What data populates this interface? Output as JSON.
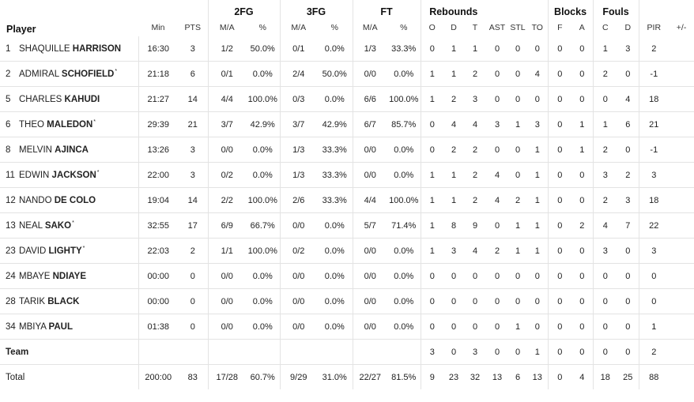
{
  "headers": {
    "player": "Player",
    "groups": {
      "fg2": "2FG",
      "fg3": "3FG",
      "ft": "FT",
      "rebounds": "Rebounds",
      "blocks": "Blocks",
      "fouls": "Fouls"
    },
    "cols": {
      "min": "Min",
      "pts": "PTS",
      "fg2_ma": "M/A",
      "fg2_pct": "%",
      "fg3_ma": "M/A",
      "fg3_pct": "%",
      "ft_ma": "M/A",
      "ft_pct": "%",
      "o": "O",
      "d": "D",
      "t": "T",
      "ast": "AST",
      "stl": "STL",
      "to": "TO",
      "blk_f": "F",
      "blk_a": "A",
      "foul_c": "C",
      "foul_d": "D",
      "pir": "PIR",
      "pm": "+/-"
    }
  },
  "players": [
    {
      "num": "1",
      "first": "SHAQUILLE",
      "last": "HARRISON",
      "starter": "",
      "min": "16:30",
      "pts": "3",
      "fg2_ma": "1/2",
      "fg2_pct": "50.0%",
      "fg3_ma": "0/1",
      "fg3_pct": "0.0%",
      "ft_ma": "1/3",
      "ft_pct": "33.3%",
      "o": "0",
      "d": "1",
      "t": "1",
      "ast": "0",
      "stl": "0",
      "to": "0",
      "blk_f": "0",
      "blk_a": "0",
      "foul_c": "1",
      "foul_d": "3",
      "pir": "2",
      "pm": ""
    },
    {
      "num": "2",
      "first": "ADMIRAL",
      "last": "SCHOFIELD",
      "starter": "*",
      "min": "21:18",
      "pts": "6",
      "fg2_ma": "0/1",
      "fg2_pct": "0.0%",
      "fg3_ma": "2/4",
      "fg3_pct": "50.0%",
      "ft_ma": "0/0",
      "ft_pct": "0.0%",
      "o": "1",
      "d": "1",
      "t": "2",
      "ast": "0",
      "stl": "0",
      "to": "4",
      "blk_f": "0",
      "blk_a": "0",
      "foul_c": "2",
      "foul_d": "0",
      "pir": "-1",
      "pm": ""
    },
    {
      "num": "5",
      "first": "CHARLES",
      "last": "KAHUDI",
      "starter": "",
      "min": "21:27",
      "pts": "14",
      "fg2_ma": "4/4",
      "fg2_pct": "100.0%",
      "fg3_ma": "0/3",
      "fg3_pct": "0.0%",
      "ft_ma": "6/6",
      "ft_pct": "100.0%",
      "o": "1",
      "d": "2",
      "t": "3",
      "ast": "0",
      "stl": "0",
      "to": "0",
      "blk_f": "0",
      "blk_a": "0",
      "foul_c": "0",
      "foul_d": "4",
      "pir": "18",
      "pm": ""
    },
    {
      "num": "6",
      "first": "THEO",
      "last": "MALEDON",
      "starter": "*",
      "min": "29:39",
      "pts": "21",
      "fg2_ma": "3/7",
      "fg2_pct": "42.9%",
      "fg3_ma": "3/7",
      "fg3_pct": "42.9%",
      "ft_ma": "6/7",
      "ft_pct": "85.7%",
      "o": "0",
      "d": "4",
      "t": "4",
      "ast": "3",
      "stl": "1",
      "to": "3",
      "blk_f": "0",
      "blk_a": "1",
      "foul_c": "1",
      "foul_d": "6",
      "pir": "21",
      "pm": ""
    },
    {
      "num": "8",
      "first": "MELVIN",
      "last": "AJINCA",
      "starter": "",
      "min": "13:26",
      "pts": "3",
      "fg2_ma": "0/0",
      "fg2_pct": "0.0%",
      "fg3_ma": "1/3",
      "fg3_pct": "33.3%",
      "ft_ma": "0/0",
      "ft_pct": "0.0%",
      "o": "0",
      "d": "2",
      "t": "2",
      "ast": "0",
      "stl": "0",
      "to": "1",
      "blk_f": "0",
      "blk_a": "1",
      "foul_c": "2",
      "foul_d": "0",
      "pir": "-1",
      "pm": ""
    },
    {
      "num": "11",
      "first": "EDWIN",
      "last": "JACKSON",
      "starter": "*",
      "min": "22:00",
      "pts": "3",
      "fg2_ma": "0/2",
      "fg2_pct": "0.0%",
      "fg3_ma": "1/3",
      "fg3_pct": "33.3%",
      "ft_ma": "0/0",
      "ft_pct": "0.0%",
      "o": "1",
      "d": "1",
      "t": "2",
      "ast": "4",
      "stl": "0",
      "to": "1",
      "blk_f": "0",
      "blk_a": "0",
      "foul_c": "3",
      "foul_d": "2",
      "pir": "3",
      "pm": ""
    },
    {
      "num": "12",
      "first": "NANDO",
      "last": "DE COLO",
      "starter": "",
      "min": "19:04",
      "pts": "14",
      "fg2_ma": "2/2",
      "fg2_pct": "100.0%",
      "fg3_ma": "2/6",
      "fg3_pct": "33.3%",
      "ft_ma": "4/4",
      "ft_pct": "100.0%",
      "o": "1",
      "d": "1",
      "t": "2",
      "ast": "4",
      "stl": "2",
      "to": "1",
      "blk_f": "0",
      "blk_a": "0",
      "foul_c": "2",
      "foul_d": "3",
      "pir": "18",
      "pm": ""
    },
    {
      "num": "13",
      "first": "NEAL",
      "last": "SAKO",
      "starter": "*",
      "min": "32:55",
      "pts": "17",
      "fg2_ma": "6/9",
      "fg2_pct": "66.7%",
      "fg3_ma": "0/0",
      "fg3_pct": "0.0%",
      "ft_ma": "5/7",
      "ft_pct": "71.4%",
      "o": "1",
      "d": "8",
      "t": "9",
      "ast": "0",
      "stl": "1",
      "to": "1",
      "blk_f": "0",
      "blk_a": "2",
      "foul_c": "4",
      "foul_d": "7",
      "pir": "22",
      "pm": ""
    },
    {
      "num": "23",
      "first": "DAVID",
      "last": "LIGHTY",
      "starter": "*",
      "min": "22:03",
      "pts": "2",
      "fg2_ma": "1/1",
      "fg2_pct": "100.0%",
      "fg3_ma": "0/2",
      "fg3_pct": "0.0%",
      "ft_ma": "0/0",
      "ft_pct": "0.0%",
      "o": "1",
      "d": "3",
      "t": "4",
      "ast": "2",
      "stl": "1",
      "to": "1",
      "blk_f": "0",
      "blk_a": "0",
      "foul_c": "3",
      "foul_d": "0",
      "pir": "3",
      "pm": ""
    },
    {
      "num": "24",
      "first": "MBAYE",
      "last": "NDIAYE",
      "starter": "",
      "min": "00:00",
      "pts": "0",
      "fg2_ma": "0/0",
      "fg2_pct": "0.0%",
      "fg3_ma": "0/0",
      "fg3_pct": "0.0%",
      "ft_ma": "0/0",
      "ft_pct": "0.0%",
      "o": "0",
      "d": "0",
      "t": "0",
      "ast": "0",
      "stl": "0",
      "to": "0",
      "blk_f": "0",
      "blk_a": "0",
      "foul_c": "0",
      "foul_d": "0",
      "pir": "0",
      "pm": ""
    },
    {
      "num": "28",
      "first": "TARIK",
      "last": "BLACK",
      "starter": "",
      "min": "00:00",
      "pts": "0",
      "fg2_ma": "0/0",
      "fg2_pct": "0.0%",
      "fg3_ma": "0/0",
      "fg3_pct": "0.0%",
      "ft_ma": "0/0",
      "ft_pct": "0.0%",
      "o": "0",
      "d": "0",
      "t": "0",
      "ast": "0",
      "stl": "0",
      "to": "0",
      "blk_f": "0",
      "blk_a": "0",
      "foul_c": "0",
      "foul_d": "0",
      "pir": "0",
      "pm": ""
    },
    {
      "num": "34",
      "first": "MBIYA",
      "last": "PAUL",
      "starter": "",
      "min": "01:38",
      "pts": "0",
      "fg2_ma": "0/0",
      "fg2_pct": "0.0%",
      "fg3_ma": "0/0",
      "fg3_pct": "0.0%",
      "ft_ma": "0/0",
      "ft_pct": "0.0%",
      "o": "0",
      "d": "0",
      "t": "0",
      "ast": "0",
      "stl": "1",
      "to": "0",
      "blk_f": "0",
      "blk_a": "0",
      "foul_c": "0",
      "foul_d": "0",
      "pir": "1",
      "pm": ""
    }
  ],
  "team": {
    "label": "Team",
    "min": "",
    "pts": "",
    "fg2_ma": "",
    "fg2_pct": "",
    "fg3_ma": "",
    "fg3_pct": "",
    "ft_ma": "",
    "ft_pct": "",
    "o": "3",
    "d": "0",
    "t": "3",
    "ast": "0",
    "stl": "0",
    "to": "1",
    "blk_f": "0",
    "blk_a": "0",
    "foul_c": "0",
    "foul_d": "0",
    "pir": "2",
    "pm": ""
  },
  "total": {
    "label": "Total",
    "min": "200:00",
    "pts": "83",
    "fg2_ma": "17/28",
    "fg2_pct": "60.7%",
    "fg3_ma": "9/29",
    "fg3_pct": "31.0%",
    "ft_ma": "22/27",
    "ft_pct": "81.5%",
    "o": "9",
    "d": "23",
    "t": "32",
    "ast": "13",
    "stl": "6",
    "to": "13",
    "blk_f": "0",
    "blk_a": "4",
    "foul_c": "18",
    "foul_d": "25",
    "pir": "88",
    "pm": ""
  }
}
